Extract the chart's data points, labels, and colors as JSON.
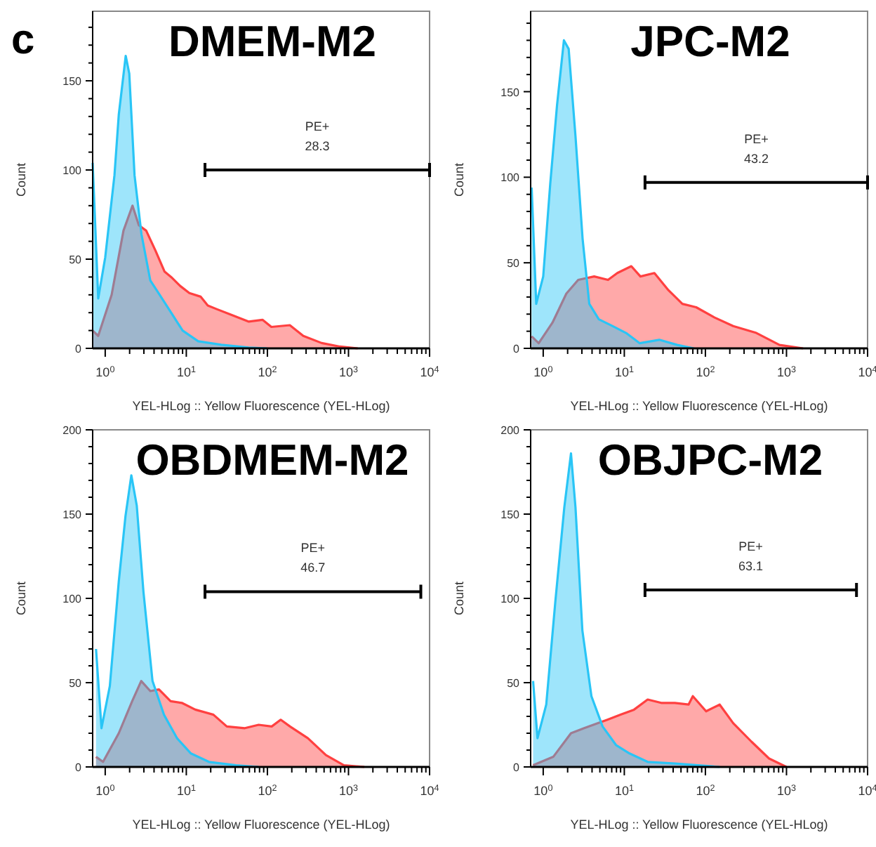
{
  "chart_data": [
    {
      "type": "area",
      "title": "DMEM-M2",
      "xlabel": "YEL-HLog :: Yellow Fluorescence (YEL-HLog)",
      "ylabel": "Count",
      "log": "x",
      "xlim": [
        0.7,
        10000
      ],
      "ylim": [
        0,
        189
      ],
      "xticks": [
        {
          "value": 1,
          "label": "10$^{0}$"
        },
        {
          "value": 2,
          "label": null
        },
        {
          "value": 3,
          "label": null
        },
        {
          "value": 4,
          "label": null
        },
        {
          "value": 5,
          "label": null
        },
        {
          "value": 6,
          "label": null
        },
        {
          "value": 7,
          "label": null
        },
        {
          "value": 8,
          "label": null
        },
        {
          "value": 9,
          "label": null
        },
        {
          "value": 10,
          "label": "10$^{1}$"
        },
        {
          "value": 20,
          "label": null
        },
        {
          "value": 30,
          "label": null
        },
        {
          "value": 40,
          "label": null
        },
        {
          "value": 50,
          "label": null
        },
        {
          "value": 60,
          "label": null
        },
        {
          "value": 70,
          "label": null
        },
        {
          "value": 80,
          "label": null
        },
        {
          "value": 90,
          "label": null
        },
        {
          "value": 100,
          "label": "10$^{2}$"
        },
        {
          "value": 200,
          "label": null
        },
        {
          "value": 300,
          "label": null
        },
        {
          "value": 400,
          "label": null
        },
        {
          "value": 500,
          "label": null
        },
        {
          "value": 600,
          "label": null
        },
        {
          "value": 700,
          "label": null
        },
        {
          "value": 800,
          "label": null
        },
        {
          "value": 900,
          "label": null
        },
        {
          "value": 1000,
          "label": "10$^{3}$"
        },
        {
          "value": 2000,
          "label": null
        },
        {
          "value": 3000,
          "label": null
        },
        {
          "value": 4000,
          "label": null
        },
        {
          "value": 5000,
          "label": null
        },
        {
          "value": 6000,
          "label": null
        },
        {
          "value": 7000,
          "label": null
        },
        {
          "value": 8000,
          "label": null
        },
        {
          "value": 9000,
          "label": null
        },
        {
          "value": 10000,
          "label": "10$^{4}$"
        }
      ],
      "yticks": [
        0,
        {
          "value": 10,
          "label": null
        },
        {
          "value": 20,
          "label": null
        },
        {
          "value": 30,
          "label": null
        },
        {
          "value": 40,
          "label": null
        },
        50,
        {
          "value": 60,
          "label": null
        },
        {
          "value": 70,
          "label": null
        },
        {
          "value": 80,
          "label": null
        },
        {
          "value": 90,
          "label": null
        },
        100,
        {
          "value": 110,
          "label": null
        },
        {
          "value": 120,
          "label": null
        },
        {
          "value": 130,
          "label": null
        },
        {
          "value": 140,
          "label": null
        },
        150,
        {
          "value": 160,
          "label": null
        },
        {
          "value": 170,
          "label": null
        },
        {
          "value": 180,
          "label": null
        }
      ],
      "annotations": [
        "c",
        "28.3"
      ],
      "series": [
        {
          "color": "#ff4040",
          "x": [
            0.7,
            0.82,
            1.2,
            1.68,
            2.17,
            2.6,
            3.2,
            4.15,
            5.4,
            6.5,
            8.4,
            10.9,
            15,
            18.4,
            23.7,
            35,
            59,
            87,
            112,
            189,
            277,
            466,
            784,
            1300
          ],
          "values": [
            10,
            7,
            30,
            66,
            80,
            69,
            66,
            55,
            43,
            40,
            35,
            31,
            29,
            24,
            22,
            19,
            15,
            16,
            12,
            13,
            7,
            3,
            1,
            0
          ]
        },
        {
          "color": "#29c5f6",
          "x": [
            0.7,
            0.82,
            1,
            1.3,
            1.47,
            1.79,
            1.98,
            2.3,
            2.8,
            3.6,
            4.7,
            6.5,
            9,
            14,
            27,
            59,
            99
          ],
          "values": [
            104,
            28,
            51,
            97,
            131,
            164,
            154,
            97,
            64,
            38,
            30,
            20,
            10,
            4,
            2,
            0.5,
            0
          ]
        },
        {
          "type": "line",
          "name": "PE+",
          "color": "#000000",
          "x": [
            17,
            10000
          ],
          "values": [
            100,
            100
          ]
        }
      ]
    },
    {
      "type": "area",
      "title": "JPC-M2",
      "xlabel": "YEL-HLog :: Yellow Fluorescence (YEL-HLog)",
      "ylabel": "Count",
      "log": "x",
      "xlim": [
        0.7,
        10000
      ],
      "ylim": [
        0,
        197
      ],
      "xticks": [
        {
          "value": 1,
          "label": "10$^{0}$"
        },
        {
          "value": 2,
          "label": null
        },
        {
          "value": 3,
          "label": null
        },
        {
          "value": 4,
          "label": null
        },
        {
          "value": 5,
          "label": null
        },
        {
          "value": 6,
          "label": null
        },
        {
          "value": 7,
          "label": null
        },
        {
          "value": 8,
          "label": null
        },
        {
          "value": 9,
          "label": null
        },
        {
          "value": 10,
          "label": "10$^{1}$"
        },
        {
          "value": 20,
          "label": null
        },
        {
          "value": 30,
          "label": null
        },
        {
          "value": 40,
          "label": null
        },
        {
          "value": 50,
          "label": null
        },
        {
          "value": 60,
          "label": null
        },
        {
          "value": 70,
          "label": null
        },
        {
          "value": 80,
          "label": null
        },
        {
          "value": 90,
          "label": null
        },
        {
          "value": 100,
          "label": "10$^{2}$"
        },
        {
          "value": 200,
          "label": null
        },
        {
          "value": 300,
          "label": null
        },
        {
          "value": 400,
          "label": null
        },
        {
          "value": 500,
          "label": null
        },
        {
          "value": 600,
          "label": null
        },
        {
          "value": 700,
          "label": null
        },
        {
          "value": 800,
          "label": null
        },
        {
          "value": 900,
          "label": null
        },
        {
          "value": 1000,
          "label": "10$^{3}$"
        },
        {
          "value": 2000,
          "label": null
        },
        {
          "value": 3000,
          "label": null
        },
        {
          "value": 4000,
          "label": null
        },
        {
          "value": 5000,
          "label": null
        },
        {
          "value": 6000,
          "label": null
        },
        {
          "value": 7000,
          "label": null
        },
        {
          "value": 8000,
          "label": null
        },
        {
          "value": 9000,
          "label": null
        },
        {
          "value": 10000,
          "label": "10$^{4}$"
        }
      ],
      "yticks": [
        0,
        {
          "value": 10,
          "label": null
        },
        {
          "value": 20,
          "label": null
        },
        {
          "value": 30,
          "label": null
        },
        {
          "value": 40,
          "label": null
        },
        50,
        {
          "value": 60,
          "label": null
        },
        {
          "value": 70,
          "label": null
        },
        {
          "value": 80,
          "label": null
        },
        {
          "value": 90,
          "label": null
        },
        100,
        {
          "value": 110,
          "label": null
        },
        {
          "value": 120,
          "label": null
        },
        {
          "value": 130,
          "label": null
        },
        {
          "value": 140,
          "label": null
        },
        150,
        {
          "value": 160,
          "label": null
        },
        {
          "value": 170,
          "label": null
        },
        {
          "value": 180,
          "label": null
        },
        {
          "value": 190,
          "label": null
        }
      ],
      "annotations": [
        "43.2"
      ],
      "series": [
        {
          "color": "#ff4040",
          "x": [
            0.72,
            0.88,
            1.3,
            1.93,
            2.7,
            4.25,
            6.3,
            8.2,
            12.2,
            15.8,
            23.5,
            35,
            52,
            77,
            130,
            220,
            425,
            820,
            1600
          ],
          "values": [
            7,
            3,
            15,
            32,
            40,
            42,
            40,
            44,
            48,
            42,
            44,
            34,
            26,
            24,
            18,
            13,
            9,
            2,
            0
          ]
        },
        {
          "color": "#29c5f6",
          "x": [
            0.72,
            0.82,
            1,
            1.22,
            1.48,
            1.8,
            2.06,
            2.5,
            3.06,
            3.7,
            4.85,
            7.2,
            10.5,
            15.5,
            27,
            45,
            72
          ],
          "values": [
            94,
            26,
            42,
            96,
            142,
            180,
            175,
            124,
            64,
            26,
            17,
            13,
            9,
            3,
            5,
            2,
            0
          ]
        },
        {
          "type": "line",
          "name": "PE+",
          "color": "#000000",
          "x": [
            18,
            10000
          ],
          "values": [
            97,
            97
          ]
        }
      ]
    },
    {
      "type": "area",
      "title": "OBDMEM-M2",
      "xlabel": "YEL-HLog :: Yellow Fluorescence (YEL-HLog)",
      "ylabel": "Count",
      "log": "x",
      "xlim": [
        0.7,
        10000
      ],
      "ylim": [
        0,
        200
      ],
      "xticks": [
        {
          "value": 1,
          "label": "10$^{0}$"
        },
        {
          "value": 2,
          "label": null
        },
        {
          "value": 3,
          "label": null
        },
        {
          "value": 4,
          "label": null
        },
        {
          "value": 5,
          "label": null
        },
        {
          "value": 6,
          "label": null
        },
        {
          "value": 7,
          "label": null
        },
        {
          "value": 8,
          "label": null
        },
        {
          "value": 9,
          "label": null
        },
        {
          "value": 10,
          "label": "10$^{1}$"
        },
        {
          "value": 20,
          "label": null
        },
        {
          "value": 30,
          "label": null
        },
        {
          "value": 40,
          "label": null
        },
        {
          "value": 50,
          "label": null
        },
        {
          "value": 60,
          "label": null
        },
        {
          "value": 70,
          "label": null
        },
        {
          "value": 80,
          "label": null
        },
        {
          "value": 90,
          "label": null
        },
        {
          "value": 100,
          "label": "10$^{2}$"
        },
        {
          "value": 200,
          "label": null
        },
        {
          "value": 300,
          "label": null
        },
        {
          "value": 400,
          "label": null
        },
        {
          "value": 500,
          "label": null
        },
        {
          "value": 600,
          "label": null
        },
        {
          "value": 700,
          "label": null
        },
        {
          "value": 800,
          "label": null
        },
        {
          "value": 900,
          "label": null
        },
        {
          "value": 1000,
          "label": "10$^{3}$"
        },
        {
          "value": 2000,
          "label": null
        },
        {
          "value": 3000,
          "label": null
        },
        {
          "value": 4000,
          "label": null
        },
        {
          "value": 5000,
          "label": null
        },
        {
          "value": 6000,
          "label": null
        },
        {
          "value": 7000,
          "label": null
        },
        {
          "value": 8000,
          "label": null
        },
        {
          "value": 9000,
          "label": null
        },
        {
          "value": 10000,
          "label": "10$^{4}$"
        }
      ],
      "yticks": [
        0,
        {
          "value": 10,
          "label": null
        },
        {
          "value": 20,
          "label": null
        },
        {
          "value": 30,
          "label": null
        },
        {
          "value": 40,
          "label": null
        },
        50,
        {
          "value": 60,
          "label": null
        },
        {
          "value": 70,
          "label": null
        },
        {
          "value": 80,
          "label": null
        },
        {
          "value": 90,
          "label": null
        },
        100,
        {
          "value": 110,
          "label": null
        },
        {
          "value": 120,
          "label": null
        },
        {
          "value": 130,
          "label": null
        },
        {
          "value": 140,
          "label": null
        },
        150,
        {
          "value": 160,
          "label": null
        },
        {
          "value": 170,
          "label": null
        },
        {
          "value": 180,
          "label": null
        },
        {
          "value": 190,
          "label": null
        },
        200
      ],
      "annotations": [
        "46.7"
      ],
      "series": [
        {
          "color": "#ff4040",
          "x": [
            0.77,
            0.94,
            1.47,
            2.15,
            2.78,
            3.6,
            4.6,
            6.4,
            8.8,
            12.9,
            21.6,
            31.6,
            52.7,
            78,
            113,
            146,
            190,
            316,
            527,
            877,
            1570
          ],
          "values": [
            6,
            3,
            20,
            39,
            51,
            45,
            46,
            39,
            38,
            34,
            31,
            24,
            23,
            25,
            24,
            28,
            24,
            17,
            7,
            1,
            0
          ]
        },
        {
          "color": "#29c5f6",
          "x": [
            0.77,
            0.9,
            1.14,
            1.47,
            1.78,
            2.1,
            2.45,
            2.96,
            3.83,
            5.3,
            7.7,
            11.4,
            19,
            41,
            78
          ],
          "values": [
            70,
            23,
            48,
            110,
            149,
            173,
            155,
            104,
            51,
            31,
            17,
            8,
            3,
            1,
            0
          ]
        },
        {
          "type": "line",
          "name": "PE+",
          "color": "#000000",
          "x": [
            17,
            7800
          ],
          "values": [
            104,
            104
          ]
        }
      ]
    },
    {
      "type": "area",
      "title": "OBJPC-M2",
      "xlabel": "YEL-HLog :: Yellow Fluorescence (YEL-HLog)",
      "ylabel": "Count",
      "log": "x",
      "xlim": [
        0.7,
        10000
      ],
      "ylim": [
        0,
        200
      ],
      "xticks": [
        {
          "value": 1,
          "label": "10$^{0}$"
        },
        {
          "value": 2,
          "label": null
        },
        {
          "value": 3,
          "label": null
        },
        {
          "value": 4,
          "label": null
        },
        {
          "value": 5,
          "label": null
        },
        {
          "value": 6,
          "label": null
        },
        {
          "value": 7,
          "label": null
        },
        {
          "value": 8,
          "label": null
        },
        {
          "value": 9,
          "label": null
        },
        {
          "value": 10,
          "label": "10$^{1}$"
        },
        {
          "value": 20,
          "label": null
        },
        {
          "value": 30,
          "label": null
        },
        {
          "value": 40,
          "label": null
        },
        {
          "value": 50,
          "label": null
        },
        {
          "value": 60,
          "label": null
        },
        {
          "value": 70,
          "label": null
        },
        {
          "value": 80,
          "label": null
        },
        {
          "value": 90,
          "label": null
        },
        {
          "value": 100,
          "label": "10$^{2}$"
        },
        {
          "value": 200,
          "label": null
        },
        {
          "value": 300,
          "label": null
        },
        {
          "value": 400,
          "label": null
        },
        {
          "value": 500,
          "label": null
        },
        {
          "value": 600,
          "label": null
        },
        {
          "value": 700,
          "label": null
        },
        {
          "value": 800,
          "label": null
        },
        {
          "value": 900,
          "label": null
        },
        {
          "value": 1000,
          "label": "10$^{3}$"
        },
        {
          "value": 2000,
          "label": null
        },
        {
          "value": 3000,
          "label": null
        },
        {
          "value": 4000,
          "label": null
        },
        {
          "value": 5000,
          "label": null
        },
        {
          "value": 6000,
          "label": null
        },
        {
          "value": 7000,
          "label": null
        },
        {
          "value": 8000,
          "label": null
        },
        {
          "value": 9000,
          "label": null
        },
        {
          "value": 10000,
          "label": "10$^{4}$"
        }
      ],
      "yticks": [
        0,
        {
          "value": 10,
          "label": null
        },
        {
          "value": 20,
          "label": null
        },
        {
          "value": 30,
          "label": null
        },
        {
          "value": 40,
          "label": null
        },
        50,
        {
          "value": 60,
          "label": null
        },
        {
          "value": 70,
          "label": null
        },
        {
          "value": 80,
          "label": null
        },
        {
          "value": 90,
          "label": null
        },
        100,
        {
          "value": 110,
          "label": null
        },
        {
          "value": 120,
          "label": null
        },
        {
          "value": 130,
          "label": null
        },
        {
          "value": 140,
          "label": null
        },
        150,
        {
          "value": 160,
          "label": null
        },
        {
          "value": 170,
          "label": null
        },
        {
          "value": 180,
          "label": null
        },
        {
          "value": 190,
          "label": null
        },
        200
      ],
      "annotations": [
        "63.1"
      ],
      "series": [
        {
          "color": "#ff4040",
          "x": [
            0.75,
            1.33,
            2.2,
            3.2,
            4.76,
            6.2,
            9,
            13.2,
            19.4,
            28.5,
            42,
            62,
            70,
            102,
            150,
            220,
            370,
            610,
            1000
          ],
          "values": [
            1,
            6,
            20,
            23,
            26,
            28,
            31,
            34,
            40,
            38,
            38,
            37,
            42,
            33,
            37,
            26,
            15,
            5,
            0
          ]
        },
        {
          "color": "#29c5f6",
          "x": [
            0.75,
            0.85,
            1.09,
            1.41,
            1.82,
            2.2,
            2.5,
            3.04,
            3.93,
            5.4,
            7.9,
            11.6,
            19.4,
            42,
            150
          ],
          "values": [
            51,
            17,
            37,
            98,
            154,
            186,
            154,
            81,
            42,
            24,
            13,
            8,
            3,
            2,
            0
          ]
        },
        {
          "type": "line",
          "name": "PE+",
          "color": "#000000",
          "x": [
            18,
            7300
          ],
          "values": [
            105,
            105
          ]
        }
      ]
    }
  ]
}
